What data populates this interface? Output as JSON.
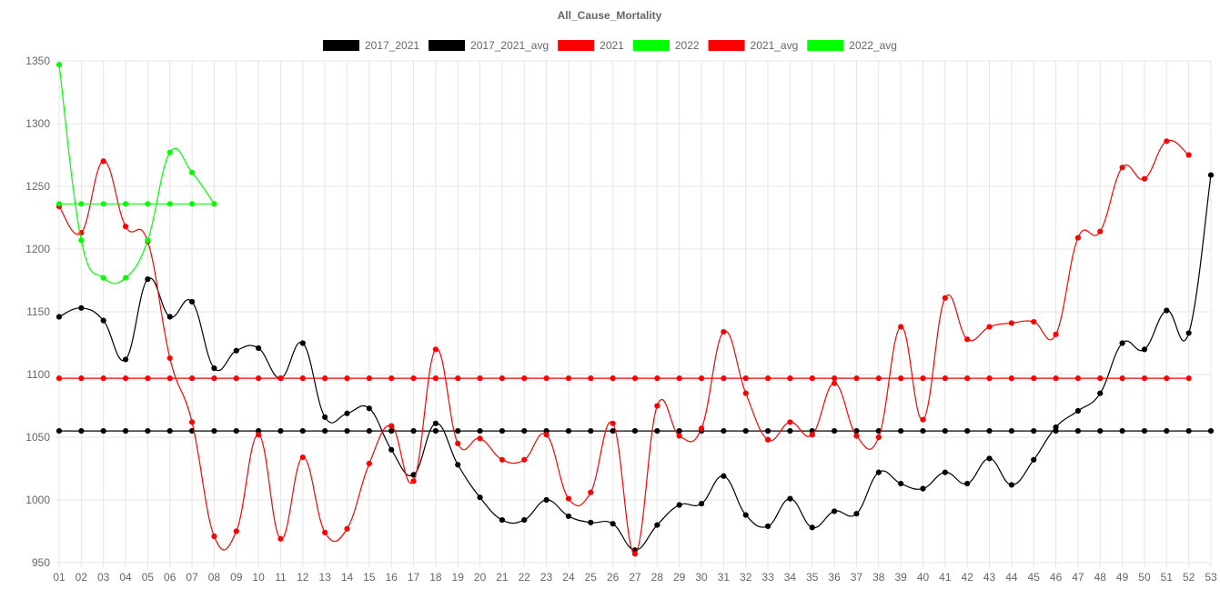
{
  "chart_data": {
    "type": "line",
    "title": "All_Cause_Mortality",
    "xlabel": "",
    "ylabel": "",
    "categories": [
      "01",
      "02",
      "03",
      "04",
      "05",
      "06",
      "07",
      "08",
      "09",
      "10",
      "11",
      "12",
      "13",
      "14",
      "15",
      "16",
      "17",
      "18",
      "19",
      "20",
      "21",
      "22",
      "23",
      "24",
      "25",
      "26",
      "27",
      "28",
      "29",
      "30",
      "31",
      "32",
      "33",
      "34",
      "35",
      "36",
      "37",
      "38",
      "39",
      "40",
      "41",
      "42",
      "43",
      "44",
      "45",
      "46",
      "47",
      "48",
      "49",
      "50",
      "51",
      "52",
      "53"
    ],
    "ylim": [
      950,
      1350
    ],
    "yticks": [
      950,
      1000,
      1050,
      1100,
      1150,
      1200,
      1250,
      1300,
      1350
    ],
    "grid": true,
    "legend_position": "top",
    "series": [
      {
        "name": "2017_2021",
        "color": "#000000",
        "values": [
          1146,
          1153,
          1143,
          1112,
          1176,
          1146,
          1158,
          1105,
          1119,
          1121,
          1097,
          1125,
          1066,
          1069,
          1073,
          1040,
          1020,
          1061,
          1028,
          1002,
          984,
          984,
          1000,
          987,
          982,
          981,
          960,
          980,
          996,
          997,
          1019,
          988,
          979,
          1001,
          978,
          991,
          989,
          1022,
          1013,
          1009,
          1022,
          1013,
          1033,
          1012,
          1032,
          1058,
          1071,
          1085,
          1125,
          1120,
          1151,
          1133,
          1259
        ]
      },
      {
        "name": "2017_2021_avg",
        "color": "#000000",
        "values": [
          1055,
          1055,
          1055,
          1055,
          1055,
          1055,
          1055,
          1055,
          1055,
          1055,
          1055,
          1055,
          1055,
          1055,
          1055,
          1055,
          1055,
          1055,
          1055,
          1055,
          1055,
          1055,
          1055,
          1055,
          1055,
          1055,
          1055,
          1055,
          1055,
          1055,
          1055,
          1055,
          1055,
          1055,
          1055,
          1055,
          1055,
          1055,
          1055,
          1055,
          1055,
          1055,
          1055,
          1055,
          1055,
          1055,
          1055,
          1055,
          1055,
          1055,
          1055,
          1055,
          1055
        ]
      },
      {
        "name": "2021",
        "color": "#ff0000",
        "values": [
          1234,
          1213,
          1270,
          1218,
          1206,
          1113,
          1062,
          971,
          975,
          1052,
          969,
          1034,
          974,
          977,
          1029,
          1059,
          1015,
          1120,
          1045,
          1049,
          1032,
          1032,
          1052,
          1001,
          1006,
          1061,
          957,
          1075,
          1051,
          1057,
          1134,
          1085,
          1048,
          1062,
          1052,
          1093,
          1051,
          1050,
          1138,
          1064,
          1161,
          1128,
          1138,
          1141,
          1142,
          1132,
          1209,
          1214,
          1265,
          1256,
          1286,
          1275,
          null
        ]
      },
      {
        "name": "2022",
        "color": "#00ff00",
        "values": [
          1347,
          1207,
          1177,
          1177,
          1207,
          1277,
          1261,
          1236,
          null,
          null,
          null,
          null,
          null,
          null,
          null,
          null,
          null,
          null,
          null,
          null,
          null,
          null,
          null,
          null,
          null,
          null,
          null,
          null,
          null,
          null,
          null,
          null,
          null,
          null,
          null,
          null,
          null,
          null,
          null,
          null,
          null,
          null,
          null,
          null,
          null,
          null,
          null,
          null,
          null,
          null,
          null,
          null,
          null
        ]
      },
      {
        "name": "2021_avg",
        "color": "#ff0000",
        "values": [
          1097,
          1097,
          1097,
          1097,
          1097,
          1097,
          1097,
          1097,
          1097,
          1097,
          1097,
          1097,
          1097,
          1097,
          1097,
          1097,
          1097,
          1097,
          1097,
          1097,
          1097,
          1097,
          1097,
          1097,
          1097,
          1097,
          1097,
          1097,
          1097,
          1097,
          1097,
          1097,
          1097,
          1097,
          1097,
          1097,
          1097,
          1097,
          1097,
          1097,
          1097,
          1097,
          1097,
          1097,
          1097,
          1097,
          1097,
          1097,
          1097,
          1097,
          1097,
          1097,
          null
        ]
      },
      {
        "name": "2022_avg",
        "color": "#00ff00",
        "values": [
          1236,
          1236,
          1236,
          1236,
          1236,
          1236,
          1236,
          1236,
          null,
          null,
          null,
          null,
          null,
          null,
          null,
          null,
          null,
          null,
          null,
          null,
          null,
          null,
          null,
          null,
          null,
          null,
          null,
          null,
          null,
          null,
          null,
          null,
          null,
          null,
          null,
          null,
          null,
          null,
          null,
          null,
          null,
          null,
          null,
          null,
          null,
          null,
          null,
          null,
          null,
          null,
          null,
          null,
          null
        ]
      }
    ]
  }
}
